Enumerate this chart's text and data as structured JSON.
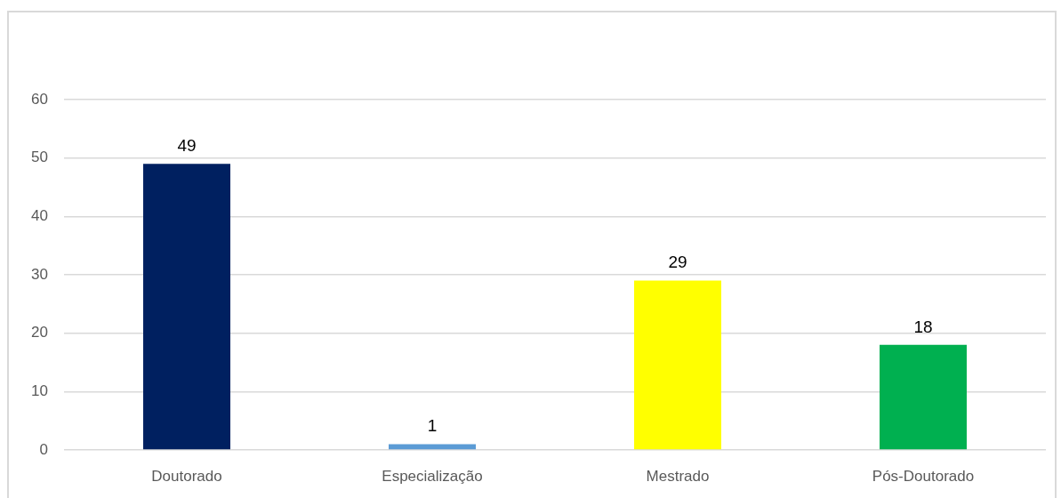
{
  "chart_data": {
    "type": "bar",
    "categories": [
      "Doutorado",
      "Especialização",
      "Mestrado",
      "Pós-Doutorado"
    ],
    "values": [
      49,
      1,
      29,
      18
    ],
    "colors": [
      "#002060",
      "#5b9bd5",
      "#ffff00",
      "#00b050"
    ],
    "ylim": [
      0,
      60
    ],
    "yticks": [
      0,
      10,
      20,
      30,
      40,
      50,
      60
    ],
    "grid": "y",
    "data_labels": true
  }
}
